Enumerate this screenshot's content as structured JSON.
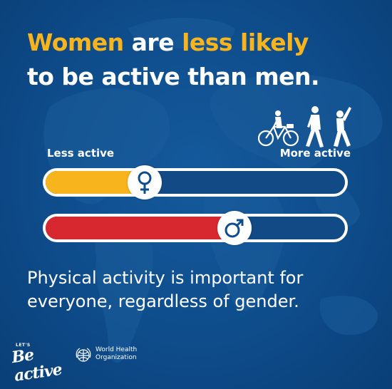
{
  "headline": {
    "part1": "Women",
    "part2": " are ",
    "part3": "less likely",
    "part4": "to be active than men."
  },
  "scale": {
    "left_label": "Less active",
    "right_label": "More active"
  },
  "bars": [
    {
      "name": "women",
      "icon": "female-symbol-icon",
      "color": "#f7b41d",
      "level": 0.33
    },
    {
      "name": "men",
      "icon": "male-symbol-icon",
      "color": "#d7282f",
      "level": 0.63
    }
  ],
  "activity_icons": [
    "cyclist-icon",
    "walking-person-icon",
    "stretching-person-icon"
  ],
  "message": "Physical activity is important for everyone, regardless of gender.",
  "footer": {
    "campaign_small": "LET'S",
    "campaign_main": "Be active",
    "org_line1": "World Health",
    "org_line2": "Organization"
  },
  "colors": {
    "background": "#0e4c8b",
    "highlight": "#f7b41d",
    "women": "#f7b41d",
    "men": "#d7282f",
    "text": "#ffffff"
  }
}
